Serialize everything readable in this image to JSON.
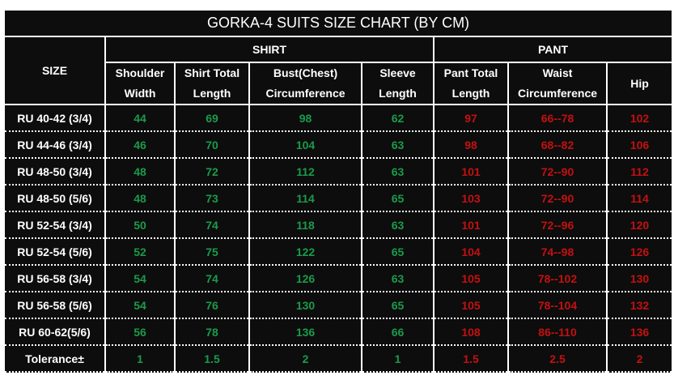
{
  "title": "GORKA-4  SUITS   SIZE CHART (BY CM)",
  "headers": {
    "size": "SIZE",
    "shirt": "SHIRT",
    "pant": "PANT",
    "columns": [
      "Shoulder\nWidth",
      "Shirt Total\nLength",
      "Bust(Chest)\nCircumference",
      "Sleeve\nLength",
      "Pant Total\nLength",
      "Waist\nCircumference",
      "Hip"
    ]
  },
  "colors": {
    "shirt_values": "#1a9b4a",
    "pant_values": "#c41010",
    "background": "#0d0d0d"
  },
  "rows": [
    [
      "RU 40-42 (3/4)",
      "44",
      "69",
      "98",
      "62",
      "97",
      "66--78",
      "102"
    ],
    [
      "RU 44-46 (3/4)",
      "46",
      "70",
      "104",
      "63",
      "98",
      "68--82",
      "106"
    ],
    [
      "RU 48-50 (3/4)",
      "48",
      "72",
      "112",
      "63",
      "101",
      "72--90",
      "112"
    ],
    [
      "RU 48-50 (5/6)",
      "48",
      "73",
      "114",
      "65",
      "103",
      "72--90",
      "114"
    ],
    [
      "RU 52-54 (3/4)",
      "50",
      "74",
      "118",
      "63",
      "101",
      "72--96",
      "120"
    ],
    [
      "RU 52-54 (5/6)",
      "52",
      "75",
      "122",
      "65",
      "104",
      "74--98",
      "126"
    ],
    [
      "RU 56-58 (3/4)",
      "54",
      "74",
      "126",
      "63",
      "105",
      "78--102",
      "130"
    ],
    [
      "RU 56-58 (5/6)",
      "54",
      "76",
      "130",
      "65",
      "105",
      "78--104",
      "132"
    ],
    [
      "RU 60-62(5/6)",
      "56",
      "78",
      "136",
      "66",
      "108",
      "86--110",
      "136"
    ],
    [
      "Tolerance±",
      "1",
      "1.5",
      "2",
      "1",
      "1.5",
      "2.5",
      "2"
    ]
  ]
}
